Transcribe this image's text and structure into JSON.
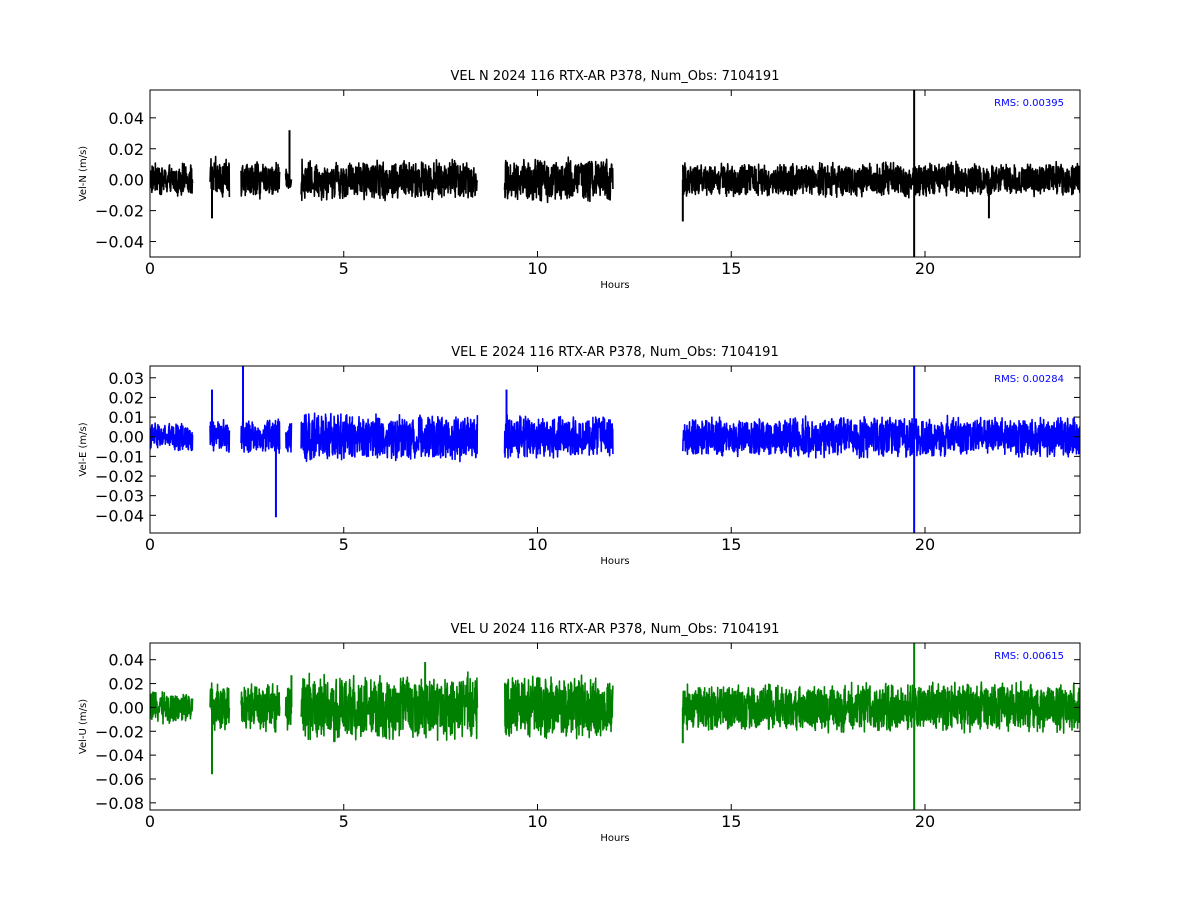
{
  "chart_data": [
    {
      "type": "line",
      "title": "VEL N 2024 116 RTX-AR  P378, Num_Obs: 7104191",
      "xlabel": "Hours",
      "ylabel": "Vel-N (m/s)",
      "xlim": [
        0,
        24
      ],
      "ylim": [
        -0.05,
        0.058
      ],
      "x_ticks": [
        "0",
        "5",
        "10",
        "15",
        "20"
      ],
      "y_ticks": [
        "0.04",
        "0.02",
        "0.00",
        "−0.02",
        "−0.04"
      ],
      "rms_label": "RMS:  0.00395",
      "color": "#000000",
      "grid": false,
      "data_segments": [
        {
          "start": 0.0,
          "end": 1.1,
          "amplitude": 0.011
        },
        {
          "start": 1.55,
          "end": 2.05,
          "amplitude": 0.015
        },
        {
          "start": 2.35,
          "end": 3.35,
          "amplitude": 0.013
        },
        {
          "start": 3.5,
          "end": 3.65,
          "amplitude": 0.008
        },
        {
          "start": 3.9,
          "end": 8.45,
          "amplitude": 0.014
        },
        {
          "start": 9.15,
          "end": 11.95,
          "amplitude": 0.015
        },
        {
          "start": 13.75,
          "end": 24.0,
          "amplitude": 0.012
        }
      ],
      "spikes": [
        {
          "x": 3.6,
          "y": 0.032
        },
        {
          "x": 1.6,
          "y": -0.025
        },
        {
          "x": 13.75,
          "y": -0.027
        },
        {
          "x": 19.72,
          "y": 0.058
        },
        {
          "x": 19.72,
          "y": -0.05
        },
        {
          "x": 21.65,
          "y": -0.025
        }
      ]
    },
    {
      "type": "line",
      "title": "VEL E 2024 116 RTX-AR  P378, Num_Obs: 7104191",
      "xlabel": "Hours",
      "ylabel": "Vel-E (m/s)",
      "xlim": [
        0,
        24
      ],
      "ylim": [
        -0.049,
        0.036
      ],
      "x_ticks": [
        "0",
        "5",
        "10",
        "15",
        "20"
      ],
      "y_ticks": [
        "0.03",
        "0.02",
        "0.01",
        "0.00",
        "−0.01",
        "−0.02",
        "−0.03",
        "−0.04"
      ],
      "rms_label": "RMS:  0.00284",
      "color": "#0000ff",
      "grid": false,
      "data_segments": [
        {
          "start": 0.0,
          "end": 1.1,
          "amplitude": 0.0075
        },
        {
          "start": 1.55,
          "end": 2.05,
          "amplitude": 0.009
        },
        {
          "start": 2.35,
          "end": 3.35,
          "amplitude": 0.01
        },
        {
          "start": 3.5,
          "end": 3.65,
          "amplitude": 0.01
        },
        {
          "start": 3.9,
          "end": 8.45,
          "amplitude": 0.013
        },
        {
          "start": 9.15,
          "end": 11.95,
          "amplitude": 0.012
        },
        {
          "start": 13.75,
          "end": 24.0,
          "amplitude": 0.011
        }
      ],
      "spikes": [
        {
          "x": 1.6,
          "y": 0.024
        },
        {
          "x": 2.4,
          "y": 0.036
        },
        {
          "x": 3.25,
          "y": -0.041
        },
        {
          "x": 9.2,
          "y": 0.024
        },
        {
          "x": 19.72,
          "y": 0.036
        },
        {
          "x": 19.72,
          "y": -0.049
        }
      ]
    },
    {
      "type": "line",
      "title": "VEL U 2024 116 RTX-AR  P378, Num_Obs: 7104191",
      "xlabel": "Hours",
      "ylabel": "Vel-U (m/s)",
      "xlim": [
        0,
        24
      ],
      "ylim": [
        -0.086,
        0.054
      ],
      "x_ticks": [
        "0",
        "5",
        "10",
        "15",
        "20"
      ],
      "y_ticks": [
        "0.04",
        "0.02",
        "0.00",
        "−0.02",
        "−0.04",
        "−0.06",
        "−0.08"
      ],
      "rms_label": "RMS:  0.00615",
      "color": "#008000",
      "grid": false,
      "data_segments": [
        {
          "start": 0.0,
          "end": 1.1,
          "amplitude": 0.014
        },
        {
          "start": 1.55,
          "end": 2.05,
          "amplitude": 0.022
        },
        {
          "start": 2.35,
          "end": 3.35,
          "amplitude": 0.022
        },
        {
          "start": 3.5,
          "end": 3.65,
          "amplitude": 0.025
        },
        {
          "start": 3.9,
          "end": 8.45,
          "amplitude": 0.03
        },
        {
          "start": 9.15,
          "end": 11.95,
          "amplitude": 0.028
        },
        {
          "start": 13.75,
          "end": 24.0,
          "amplitude": 0.022
        }
      ],
      "spikes": [
        {
          "x": 1.6,
          "y": -0.056
        },
        {
          "x": 3.65,
          "y": 0.027
        },
        {
          "x": 7.1,
          "y": 0.038
        },
        {
          "x": 13.75,
          "y": -0.03
        },
        {
          "x": 19.72,
          "y": 0.054
        },
        {
          "x": 19.72,
          "y": -0.086
        }
      ]
    }
  ]
}
